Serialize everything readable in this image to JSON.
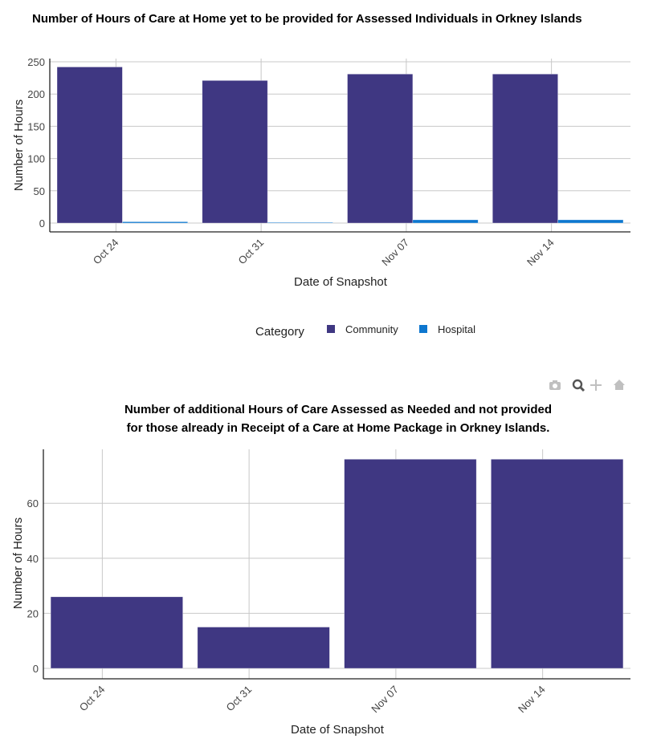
{
  "colors": {
    "community": "#3f3782",
    "hospital": "#0d77cf",
    "grid": "#c8c8c8"
  },
  "modebar": {
    "icons": [
      "camera-icon",
      "zoom-icon",
      "pan-icon",
      "home-icon"
    ]
  },
  "chart_data": [
    {
      "type": "bar",
      "title": "Number of Hours of Care at Home yet to be provided for Assessed Individuals in Orkney Islands",
      "xlabel": "Date of Snapshot",
      "ylabel": "Number of Hours",
      "categories": [
        "Oct 24",
        "Oct 31",
        "Nov 07",
        "Nov 14"
      ],
      "series": [
        {
          "name": "Community",
          "values": [
            242,
            221,
            231,
            231
          ]
        },
        {
          "name": "Hospital",
          "values": [
            2,
            1,
            5,
            5
          ]
        }
      ],
      "yticks": [
        0,
        50,
        100,
        150,
        200,
        250
      ],
      "ylim": [
        -13.7,
        255
      ],
      "legend": {
        "title": "Category",
        "placement": "bottom"
      },
      "grid": true
    },
    {
      "type": "bar",
      "title": "Number of additional Hours of Care Assessed as Needed and not provided for those already in Receipt of a Care at Home Package in Orkney Islands.",
      "title_lines": [
        "Number of additional Hours of Care Assessed as Needed and not provided",
        "for those already in Receipt of a Care at Home Package in Orkney Islands."
      ],
      "xlabel": "Date of Snapshot",
      "ylabel": "Number of Hours",
      "categories": [
        "Oct 24",
        "Oct 31",
        "Nov 07",
        "Nov 14"
      ],
      "values": [
        26,
        15,
        76,
        76
      ],
      "yticks": [
        0,
        20,
        40,
        60
      ],
      "ylim": [
        -3.8,
        79.6
      ],
      "grid": true
    }
  ]
}
